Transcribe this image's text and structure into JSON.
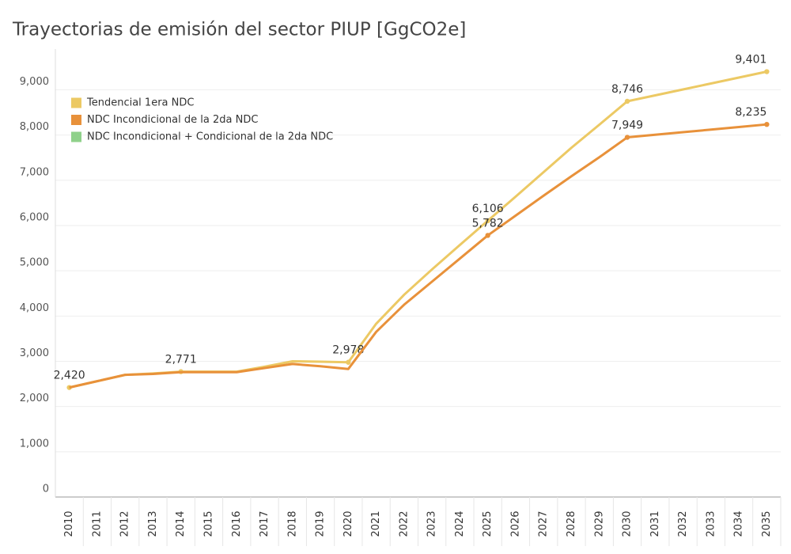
{
  "chart_data": {
    "type": "line",
    "title": "Trayectorias de emisión del sector PIUP [GgCO2e]",
    "categories": [
      "2010",
      "2011",
      "2012",
      "2013",
      "2014",
      "2015",
      "2016",
      "2017",
      "2018",
      "2019",
      "2020",
      "2021",
      "2022",
      "2023",
      "2024",
      "2025",
      "2026",
      "2027",
      "2028",
      "2029",
      "2030",
      "2031",
      "2032",
      "2033",
      "2034",
      "2035"
    ],
    "series": [
      {
        "name": "Tendencial 1era NDC",
        "color": "#ecc964",
        "values": [
          2420,
          2560,
          2700,
          2730,
          2771,
          2771,
          2771,
          2880,
          3000,
          2990,
          2978,
          3830,
          4470,
          5030,
          5570,
          6106,
          6640,
          7180,
          7720,
          8230,
          8746,
          8877,
          9008,
          9139,
          9270,
          9401
        ],
        "value_labels": [
          "2,420",
          null,
          null,
          null,
          "2,771",
          null,
          null,
          null,
          null,
          null,
          "2,978",
          null,
          null,
          null,
          null,
          "6,106",
          null,
          null,
          null,
          null,
          "8,746",
          null,
          null,
          null,
          null,
          "9,401"
        ]
      },
      {
        "name": "NDC Incondicional de la 2da NDC",
        "color": "#e8913a",
        "values": [
          2420,
          2560,
          2700,
          2720,
          2760,
          2760,
          2760,
          2850,
          2940,
          2890,
          2830,
          3650,
          4250,
          4760,
          5270,
          5782,
          6220,
          6660,
          7090,
          7510,
          7949,
          8006,
          8063,
          8120,
          8178,
          8235
        ],
        "value_labels": [
          null,
          null,
          null,
          null,
          null,
          null,
          null,
          null,
          null,
          null,
          null,
          null,
          null,
          null,
          null,
          "5,782",
          null,
          null,
          null,
          null,
          "7,949",
          null,
          null,
          null,
          null,
          "8,235"
        ]
      },
      {
        "name": "NDC Incondicional + Condicional de la 2da NDC",
        "color": "#8fd18a",
        "values": [
          null,
          null,
          null,
          null,
          null,
          null,
          null,
          null,
          null,
          null,
          null,
          null,
          null,
          null,
          null,
          null,
          null,
          null,
          null,
          null,
          null,
          null,
          null,
          null,
          null,
          null
        ]
      }
    ],
    "ylim": [
      0,
      9900
    ],
    "yticks": [
      0,
      {
        "value": 1000,
        "label": "1,000"
      },
      {
        "value": 2000,
        "label": "2,000"
      },
      {
        "value": 3000,
        "label": "3,000"
      },
      {
        "value": 4000,
        "label": "4,000"
      },
      {
        "value": 5000,
        "label": "5,000"
      },
      {
        "value": 6000,
        "label": "6,000"
      },
      {
        "value": 7000,
        "label": "7,000"
      },
      {
        "value": 8000,
        "label": "8,000"
      },
      {
        "value": 9000,
        "label": "9,000"
      }
    ],
    "grid": true,
    "legend": "top-left"
  }
}
